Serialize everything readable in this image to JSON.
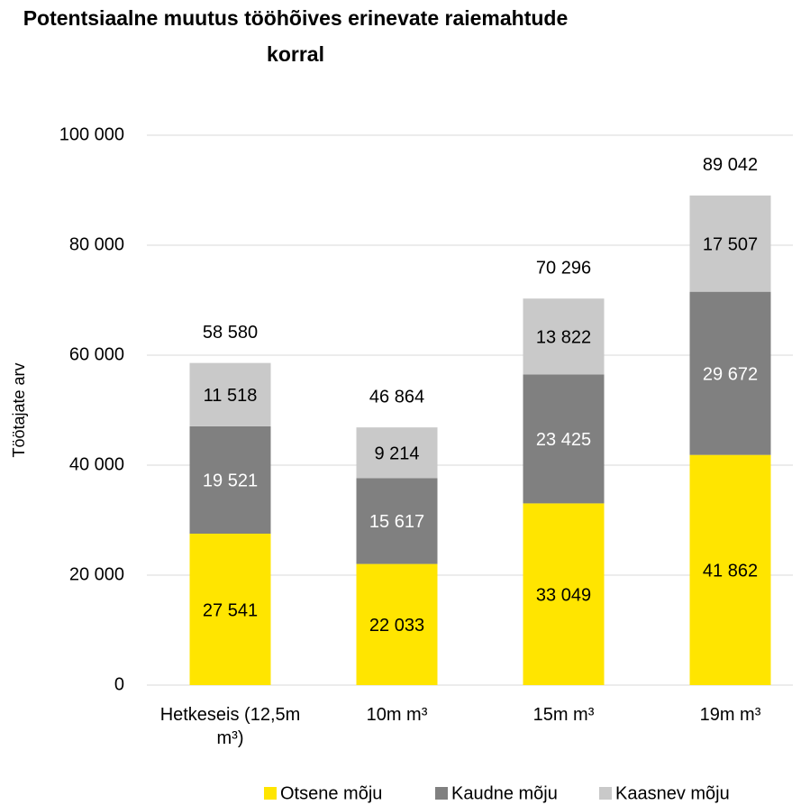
{
  "chart_data": {
    "type": "stacked_bar",
    "title": "Potentsiaalne muutus tööhõives erinevate raiemahtude korral",
    "ylabel": "Töötajate arv",
    "categories": [
      "Hetkeseis (12,5m m³)",
      "10m m³",
      "15m m³",
      "19m m³"
    ],
    "series": [
      {
        "name": "Otsene mõju",
        "color": "#FFE500",
        "values": [
          27541,
          22033,
          33049,
          41862
        ],
        "value_labels": [
          "27 541",
          "22 033",
          "33 049",
          "41 862"
        ]
      },
      {
        "name": "Kaudne mõju",
        "color": "#808080",
        "values": [
          19521,
          15617,
          23425,
          29672
        ],
        "value_labels": [
          "19 521",
          "15 617",
          "23 425",
          "29 672"
        ]
      },
      {
        "name": "Kaasnev mõju",
        "color": "#C9C9C9",
        "values": [
          11518,
          9214,
          13822,
          17507
        ],
        "value_labels": [
          "11 518",
          "9 214",
          "13 822",
          "17 507"
        ]
      }
    ],
    "totals": [
      58580,
      46864,
      70296,
      89042
    ],
    "total_labels": [
      "58 580",
      "46 864",
      "70 296",
      "89 042"
    ],
    "ylim": [
      0,
      100000
    ],
    "yticks": [
      0,
      {
        "value": 20000,
        "label": "20 000"
      },
      {
        "value": 40000,
        "label": "40 000"
      },
      {
        "value": 60000,
        "label": "60 000"
      },
      {
        "value": 80000,
        "label": "80 000"
      },
      {
        "value": 100000,
        "label": "100 000"
      }
    ],
    "grid": true,
    "legend": "bottom"
  }
}
